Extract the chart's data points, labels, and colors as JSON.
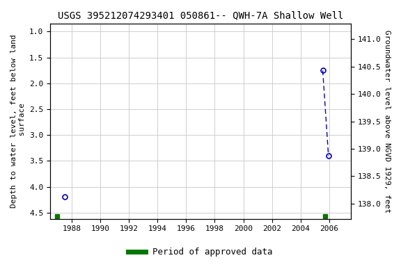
{
  "title": "USGS 395212074293401 050861-- QWH-7A Shallow Well",
  "ylabel_left": "Depth to water level, feet below land\n surface",
  "ylabel_right": "Groundwater level above NGVD 1929, feet",
  "xlim": [
    1986.5,
    2007.5
  ],
  "ylim_left": [
    4.62,
    0.85
  ],
  "ylim_right": [
    137.72,
    141.28
  ],
  "xticks": [
    1988,
    1990,
    1992,
    1994,
    1996,
    1998,
    2000,
    2002,
    2004,
    2006
  ],
  "yticks_left": [
    1.0,
    1.5,
    2.0,
    2.5,
    3.0,
    3.5,
    4.0,
    4.5
  ],
  "yticks_right": [
    138.0,
    138.5,
    139.0,
    139.5,
    140.0,
    140.5,
    141.0
  ],
  "point1_x": 1987.5,
  "point1_y": 4.2,
  "point2_x": 2005.55,
  "point2_y": 1.75,
  "point3_x": 2005.95,
  "point3_y": 3.4,
  "green1_x": 1987.0,
  "green2_x": 2005.7,
  "green_y": 4.57,
  "point_color": "#0000bb",
  "line_color": "#0000bb",
  "green_color": "#007700",
  "bg_color": "#ffffff",
  "grid_color": "#c8c8c8",
  "title_fontsize": 10,
  "label_fontsize": 8,
  "tick_fontsize": 8,
  "legend_fontsize": 9
}
